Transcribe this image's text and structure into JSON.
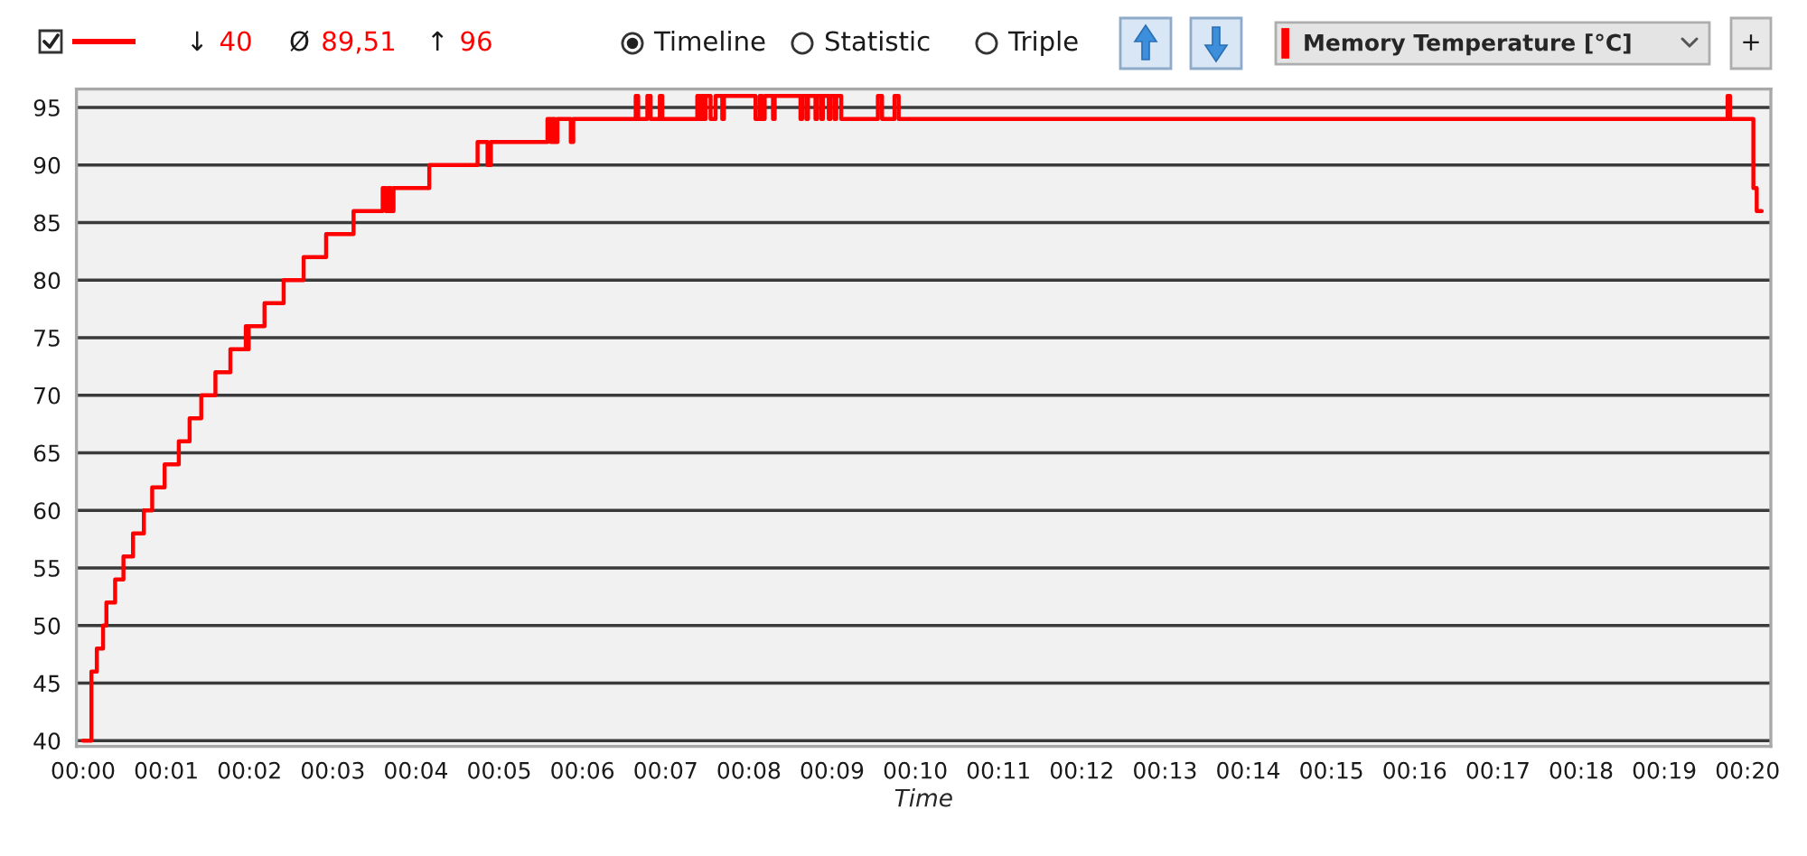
{
  "chart_data": {
    "type": "step",
    "xlabel": "Time",
    "x": [
      0,
      0.1,
      0.165,
      0.24,
      0.28,
      0.385,
      0.485,
      0.6,
      0.73,
      0.83,
      0.98,
      1.15,
      1.28,
      1.42,
      1.59,
      1.77,
      1.955,
      1.97,
      1.99,
      2.18,
      2.41,
      2.65,
      2.92,
      3.25,
      3.6,
      3.64,
      3.665,
      3.7,
      3.73,
      4.16,
      4.74,
      4.86,
      4.9,
      5.58,
      5.62,
      5.64,
      5.67,
      5.7,
      5.86,
      5.89,
      6.64,
      6.67,
      6.78,
      6.82,
      6.93,
      6.96,
      7.38,
      7.41,
      7.43,
      7.46,
      7.48,
      7.54,
      7.6,
      7.68,
      7.7,
      8.08,
      8.13,
      8.16,
      8.19,
      8.29,
      8.31,
      8.62,
      8.64,
      8.69,
      8.71,
      8.8,
      8.82,
      8.87,
      8.89,
      8.96,
      8.98,
      9.03,
      9.05,
      9.11,
      9.55,
      9.6,
      9.75,
      9.8,
      19.76,
      19.79,
      20.07,
      20.11,
      20.17
    ],
    "series": [
      {
        "name": "Memory Temperature [°C]",
        "color": "#ff0000",
        "values": [
          40,
          46,
          48,
          50,
          52,
          54,
          56,
          58,
          60,
          62,
          64,
          66,
          68,
          70,
          72,
          74,
          76,
          74,
          76,
          78,
          80,
          82,
          84,
          86,
          88,
          86,
          88,
          86,
          88,
          90,
          92,
          90,
          92,
          94,
          92,
          94,
          92,
          94,
          92,
          94,
          96,
          94,
          96,
          94,
          96,
          94,
          96,
          94,
          96,
          94,
          96,
          94,
          96,
          94,
          96,
          94,
          96,
          94,
          96,
          94,
          96,
          94,
          96,
          94,
          96,
          94,
          96,
          94,
          96,
          94,
          96,
          94,
          96,
          94,
          96,
          94,
          96,
          94,
          96,
          94,
          88,
          86,
          86
        ]
      }
    ],
    "xlim": [
      -0.08,
      20.28
    ],
    "xticks": [
      {
        "value": 0,
        "label": "00:00"
      },
      {
        "value": 1,
        "label": "00:01"
      },
      {
        "value": 2,
        "label": "00:02"
      },
      {
        "value": 3,
        "label": "00:03"
      },
      {
        "value": 4,
        "label": "00:04"
      },
      {
        "value": 5,
        "label": "00:05"
      },
      {
        "value": 6,
        "label": "00:06"
      },
      {
        "value": 7,
        "label": "00:07"
      },
      {
        "value": 8,
        "label": "00:08"
      },
      {
        "value": 9,
        "label": "00:09"
      },
      {
        "value": 10,
        "label": "00:10"
      },
      {
        "value": 11,
        "label": "00:11"
      },
      {
        "value": 12,
        "label": "00:12"
      },
      {
        "value": 13,
        "label": "00:13"
      },
      {
        "value": 14,
        "label": "00:14"
      },
      {
        "value": 15,
        "label": "00:15"
      },
      {
        "value": 16,
        "label": "00:16"
      },
      {
        "value": 17,
        "label": "00:17"
      },
      {
        "value": 18,
        "label": "00:18"
      },
      {
        "value": 19,
        "label": "00:19"
      },
      {
        "value": 20,
        "label": "00:20"
      }
    ],
    "ylim": [
      39.5,
      96.6
    ],
    "yticks": [
      40,
      45,
      50,
      55,
      60,
      65,
      70,
      75,
      80,
      85,
      90,
      95
    ],
    "grid": "y",
    "legend": "top right",
    "annotations": [
      "↓ 40",
      "Ø 89,51",
      "↑ 96",
      "Timeline",
      "Statistic",
      "Triple",
      "+"
    ]
  }
}
